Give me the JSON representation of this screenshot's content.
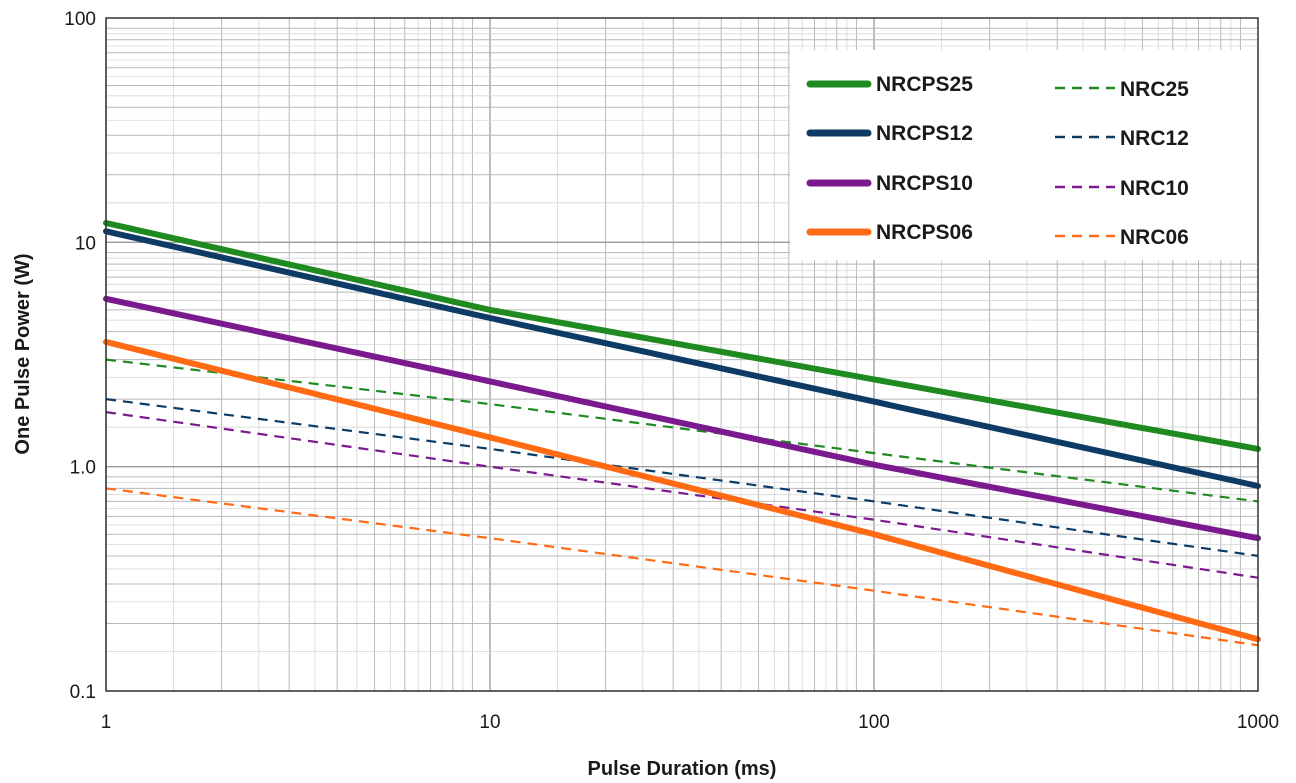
{
  "chart_data": {
    "type": "line",
    "title": "",
    "xlabel": "Pulse Duration (ms)",
    "ylabel": "One Pulse Power (W)",
    "xscale": "log",
    "yscale": "log",
    "xlim": [
      1,
      1000
    ],
    "ylim": [
      0.1,
      100
    ],
    "x_ticks": [
      "1",
      "10",
      "100",
      "1000"
    ],
    "y_ticks": [
      "0.1",
      "1.0",
      "10",
      "100"
    ],
    "grid": true,
    "legend": "top-right",
    "series": [
      {
        "name": "NRCPS25",
        "style": "solid",
        "color": "#1f8a1f",
        "x": [
          1,
          10,
          100,
          1000
        ],
        "y": [
          12.2,
          5.0,
          2.45,
          1.2
        ]
      },
      {
        "name": "NRCPS12",
        "style": "solid",
        "color": "#0d3b66",
        "x": [
          1,
          10,
          100,
          1000
        ],
        "y": [
          11.2,
          4.6,
          1.95,
          0.82
        ]
      },
      {
        "name": "NRCPS10",
        "style": "solid",
        "color": "#7b1a8f",
        "x": [
          1,
          10,
          100,
          1000
        ],
        "y": [
          5.6,
          2.4,
          1.02,
          0.48
        ]
      },
      {
        "name": "NRCPS06",
        "style": "solid",
        "color": "#ff6a13",
        "x": [
          1,
          10,
          100,
          1000
        ],
        "y": [
          3.6,
          1.35,
          0.5,
          0.17
        ]
      },
      {
        "name": "NRC25",
        "style": "dashed",
        "color": "#1f8a1f",
        "x": [
          1,
          10,
          100,
          1000
        ],
        "y": [
          3.0,
          1.9,
          1.15,
          0.7
        ]
      },
      {
        "name": "NRC12",
        "style": "dashed",
        "color": "#0d3b66",
        "x": [
          1,
          10,
          100,
          1000
        ],
        "y": [
          2.0,
          1.2,
          0.7,
          0.4
        ]
      },
      {
        "name": "NRC10",
        "style": "dashed",
        "color": "#7b1a8f",
        "x": [
          1,
          10,
          100,
          1000
        ],
        "y": [
          1.75,
          1.0,
          0.58,
          0.32
        ]
      },
      {
        "name": "NRC06",
        "style": "dashed",
        "color": "#ff6a13",
        "x": [
          1,
          10,
          100,
          1000
        ],
        "y": [
          0.8,
          0.48,
          0.28,
          0.16
        ]
      }
    ]
  }
}
